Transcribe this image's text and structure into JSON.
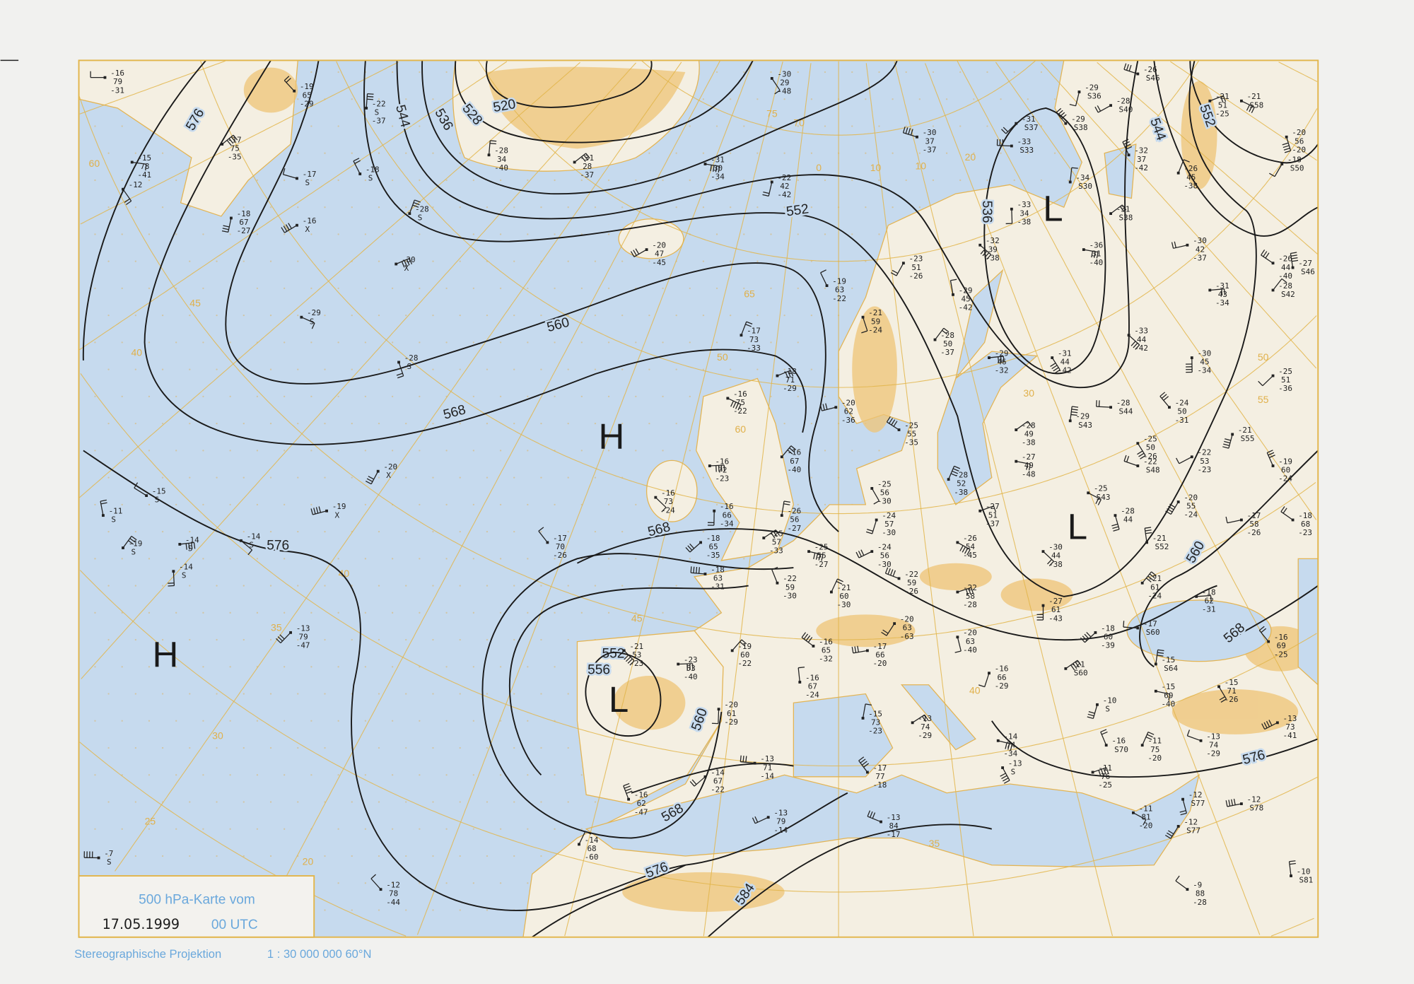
{
  "map": {
    "title": "500 hPa-Karte vom",
    "date": "17.05.1999",
    "time": "00 UTC",
    "projection": "Stereographische Projektion",
    "scale": "1 : 30 000 000  60°N",
    "colors": {
      "sea": "#c6daee",
      "land": "#f4efe2",
      "relief": "#efc475",
      "grid": "#e2b54a",
      "contour": "#1a1a1a",
      "legend_text": "#6aa8dc"
    }
  },
  "contours": [
    {
      "label": "520"
    },
    {
      "label": "528"
    },
    {
      "label": "536"
    },
    {
      "label": "544"
    },
    {
      "label": "552"
    },
    {
      "label": "560"
    },
    {
      "label": "568"
    },
    {
      "label": "576"
    },
    {
      "label": "584"
    },
    {
      "label": "536"
    },
    {
      "label": "544"
    },
    {
      "label": "552"
    },
    {
      "label": "560"
    },
    {
      "label": "568"
    },
    {
      "label": "576"
    },
    {
      "label": "568"
    },
    {
      "label": "576"
    },
    {
      "label": "560"
    },
    {
      "label": "552"
    },
    {
      "label": "576"
    },
    {
      "label": "556"
    },
    {
      "label": "568"
    }
  ],
  "centers": [
    "H",
    "H",
    "L",
    "L",
    "L"
  ],
  "grid_labels": [
    "60",
    "50",
    "45",
    "40",
    "35",
    "30",
    "25",
    "20",
    "10",
    "0",
    "10",
    "20",
    "30",
    "40",
    "65",
    "60",
    "55",
    "50",
    "45",
    "40",
    "35",
    "75",
    "70"
  ],
  "stations": [
    [
      "-16",
      "79",
      "-31"
    ],
    [
      "-19",
      "65",
      "-29"
    ],
    [
      "-22",
      "S",
      "-37"
    ],
    [
      "-17",
      "75",
      "-35"
    ],
    [
      "-15",
      "78",
      "-41"
    ],
    [
      "-12",
      "",
      ""
    ],
    [
      "-18",
      "67",
      "-27"
    ],
    [
      "-16",
      "X",
      ""
    ],
    [
      "-17",
      "S",
      ""
    ],
    [
      "-18",
      "S",
      ""
    ],
    [
      "-28",
      "S",
      ""
    ],
    [
      "-30",
      "X",
      ""
    ],
    [
      "-29",
      "S",
      ""
    ],
    [
      "-28",
      "S",
      ""
    ],
    [
      "-20",
      "X",
      ""
    ],
    [
      "-19",
      "X",
      ""
    ],
    [
      "-15",
      "S",
      ""
    ],
    [
      "-11",
      "S",
      ""
    ],
    [
      "-19",
      "S",
      ""
    ],
    [
      "-14",
      "S",
      ""
    ],
    [
      "-14",
      "S",
      ""
    ],
    [
      "-14",
      "S",
      ""
    ],
    [
      "-13",
      "79",
      "-47"
    ],
    [
      "-7",
      "S",
      ""
    ],
    [
      "-12",
      "78",
      "-44"
    ],
    [
      "-28",
      "34",
      "-40"
    ],
    [
      "-31",
      "28",
      "-37"
    ],
    [
      "-31",
      "30",
      "-34"
    ],
    [
      "-30",
      "29",
      "-48"
    ],
    [
      "-22",
      "42",
      "-42"
    ],
    [
      "-20",
      "47",
      "-45"
    ],
    [
      "-30",
      "37",
      "-37"
    ],
    [
      "-19",
      "63",
      "-22"
    ],
    [
      "-17",
      "73",
      "-33"
    ],
    [
      "-18",
      "71",
      "-29"
    ],
    [
      "-16",
      "75",
      "-22"
    ],
    [
      "-21",
      "59",
      "-24"
    ],
    [
      "-23",
      "51",
      "-26"
    ],
    [
      "-20",
      "62",
      "-36"
    ],
    [
      "-25",
      "55",
      "-35"
    ],
    [
      "-29",
      "45",
      "-42"
    ],
    [
      "-28",
      "50",
      "-37"
    ],
    [
      "-29",
      "46",
      "-32"
    ],
    [
      "-32",
      "39",
      "-38"
    ],
    [
      "-33",
      "34",
      "-38"
    ],
    [
      "-31",
      "S37",
      ""
    ],
    [
      "-33",
      "S33",
      ""
    ],
    [
      "-29",
      "S38",
      ""
    ],
    [
      "-34",
      "S30",
      ""
    ],
    [
      "-31",
      "S38",
      ""
    ],
    [
      "-36",
      "31",
      "-40"
    ],
    [
      "-31",
      "44",
      "-42"
    ],
    [
      "-29",
      "S36",
      ""
    ],
    [
      "-28",
      "S40",
      ""
    ],
    [
      "-26",
      "S46",
      ""
    ],
    [
      "-32",
      "37",
      "-42"
    ],
    [
      "-26",
      "45",
      "-38"
    ],
    [
      "-21",
      "51",
      "-25"
    ],
    [
      "-21",
      "S58",
      ""
    ],
    [
      "-20",
      "56",
      "-20"
    ],
    [
      "-18",
      "S50",
      ""
    ],
    [
      "-30",
      "42",
      "-37"
    ],
    [
      "-26",
      "44",
      "-40"
    ],
    [
      "-27",
      "S46",
      ""
    ],
    [
      "-28",
      "S42",
      ""
    ],
    [
      "-31",
      "43",
      "-34"
    ],
    [
      "-33",
      "44",
      "-42"
    ],
    [
      "-30",
      "45",
      "-34"
    ],
    [
      "-25",
      "51",
      "-36"
    ],
    [
      "-28",
      "S44",
      ""
    ],
    [
      "-24",
      "50",
      "-31"
    ],
    [
      "-29",
      "S43",
      ""
    ],
    [
      "-28",
      "49",
      "-38"
    ],
    [
      "-27",
      "49",
      "-48"
    ],
    [
      "-25",
      "50",
      "-26"
    ],
    [
      "-21",
      "S55",
      ""
    ],
    [
      "-22",
      "53",
      "-23"
    ],
    [
      "-22",
      "S48",
      ""
    ],
    [
      "-19",
      "60",
      "-24"
    ],
    [
      "-28",
      "52",
      "-38"
    ],
    [
      "-27",
      "51",
      "-37"
    ],
    [
      "-25",
      "S43",
      ""
    ],
    [
      "-28",
      "44",
      ""
    ],
    [
      "-20",
      "55",
      "-24"
    ],
    [
      "-17",
      "58",
      "-26"
    ],
    [
      "-18",
      "68",
      "-23"
    ],
    [
      "-21",
      "S52",
      ""
    ],
    [
      "-21",
      "61",
      "-24"
    ],
    [
      "-18",
      "62",
      "-31"
    ],
    [
      "-30",
      "44",
      "-38"
    ],
    [
      "-27",
      "61",
      "-43"
    ],
    [
      "-18",
      "60",
      "-39"
    ],
    [
      "-17",
      "S60",
      ""
    ],
    [
      "-16",
      "69",
      "-25"
    ],
    [
      "-15",
      "S64",
      ""
    ],
    [
      "-21",
      "S60",
      ""
    ],
    [
      "-15",
      "69",
      "-40"
    ],
    [
      "-15",
      "71",
      "-26"
    ],
    [
      "-10",
      "S",
      ""
    ],
    [
      "-13",
      "73",
      "-41"
    ],
    [
      "-13",
      "74",
      "-29"
    ],
    [
      "-16",
      "S70",
      ""
    ],
    [
      "-11",
      "75",
      "-20"
    ],
    [
      "-11",
      "76",
      "-25"
    ],
    [
      "-11",
      "81",
      "-20"
    ],
    [
      "-12",
      "S77",
      ""
    ],
    [
      "-12",
      "S77",
      ""
    ],
    [
      "-12",
      "S78",
      ""
    ],
    [
      "-9",
      "88",
      "-28"
    ],
    [
      "-10",
      "S81",
      ""
    ],
    [
      "-16",
      "67",
      "-40"
    ],
    [
      "-16",
      "72",
      "-23"
    ],
    [
      "-16",
      "73",
      "-24"
    ],
    [
      "-16",
      "66",
      "-34"
    ],
    [
      "-18",
      "65",
      "-35"
    ],
    [
      "-18",
      "63",
      "-31"
    ],
    [
      "-17",
      "70",
      "-26"
    ],
    [
      "-26",
      "56",
      "-27"
    ],
    [
      "-25",
      "57",
      "-33"
    ],
    [
      "-25",
      "55",
      "-27"
    ],
    [
      "-25",
      "56",
      "-30"
    ],
    [
      "-24",
      "57",
      "-30"
    ],
    [
      "-24",
      "56",
      "-30"
    ],
    [
      "-22",
      "59",
      "-26"
    ],
    [
      "-22",
      "59",
      "-30"
    ],
    [
      "-21",
      "60",
      "-30"
    ],
    [
      "-22",
      "58",
      "-28"
    ],
    [
      "-26",
      "54",
      "-45"
    ],
    [
      "-20",
      "63",
      "-40"
    ],
    [
      "-20",
      "63",
      "-63"
    ],
    [
      "-17",
      "66",
      "-20"
    ],
    [
      "-16",
      "65",
      "-32"
    ],
    [
      "-16",
      "67",
      "-24"
    ],
    [
      "-19",
      "60",
      "-22"
    ],
    [
      "-23",
      "53",
      "-40"
    ],
    [
      "-21",
      "53",
      "-23"
    ],
    [
      "-20",
      "61",
      "-29"
    ],
    [
      "-14",
      "67",
      "-22"
    ],
    [
      "-13",
      "71",
      "-14"
    ],
    [
      "-17",
      "77",
      "-18"
    ],
    [
      "-15",
      "73",
      "-23"
    ],
    [
      "-13",
      "74",
      "-29"
    ],
    [
      "-14",
      "74",
      "-34"
    ],
    [
      "-13",
      "S",
      ""
    ],
    [
      "-16",
      "66",
      "-29"
    ],
    [
      "-13",
      "79",
      "-14"
    ],
    [
      "-13",
      "84",
      "-17"
    ],
    [
      "-16",
      "62",
      "-47"
    ],
    [
      "-14",
      "68",
      "-60"
    ]
  ]
}
